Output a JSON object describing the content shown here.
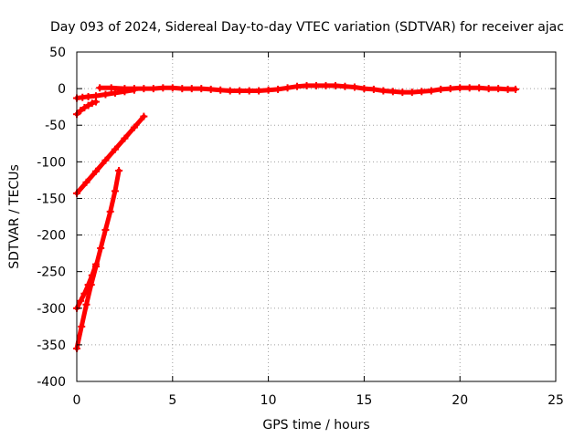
{
  "chart_data": {
    "type": "scatter",
    "title": "Day 093 of 2024, Sidereal Day-to-day VTEC variation (SDTVAR) for receiver ajac",
    "xlabel": "GPS time / hours",
    "ylabel": "SDTVAR / TECUs",
    "xlim": [
      0,
      25
    ],
    "ylim": [
      -400,
      50
    ],
    "xticks": [
      "0",
      "5",
      "10",
      "15",
      "20",
      "25"
    ],
    "yticks": [
      "50",
      "0",
      "-50",
      "-100",
      "-150",
      "-200",
      "-250",
      "-300",
      "-350",
      "-400"
    ],
    "grid": true,
    "series_color": "#ff0000",
    "series": [
      {
        "x": [
          1.2,
          1.8,
          2.5,
          3.0,
          3.5,
          4.0,
          4.5,
          5.0,
          5.5,
          6.0,
          6.5,
          7.0,
          7.5,
          8.0,
          8.5,
          9.0,
          9.5,
          10.0,
          10.5,
          11.0,
          11.5,
          12.0,
          12.5,
          13.0,
          13.5,
          14.0,
          14.5,
          15.0,
          15.5,
          16.0,
          16.5,
          17.0,
          17.5,
          18.0,
          18.5,
          19.0,
          19.5,
          20.0,
          20.5,
          21.0,
          21.5,
          22.0,
          22.5,
          22.9
        ],
        "y": [
          1,
          1,
          0,
          0,
          0,
          0,
          1,
          1,
          0,
          0,
          0,
          -1,
          -2,
          -3,
          -3,
          -3,
          -3,
          -2,
          -1,
          1,
          3,
          4,
          4,
          4,
          4,
          3,
          2,
          0,
          -1,
          -3,
          -4,
          -5,
          -5,
          -4,
          -3,
          -1,
          0,
          1,
          1,
          1,
          0,
          0,
          -1,
          -1
        ]
      },
      {
        "x": [
          0.0,
          0.3,
          0.6,
          1.0,
          1.5,
          2.0,
          2.5,
          3.0
        ],
        "y": [
          -13,
          -12,
          -11,
          -10,
          -8,
          -6,
          -4,
          -2
        ]
      },
      {
        "x": [
          0.0,
          0.2,
          0.4,
          0.6,
          0.8,
          1.0
        ],
        "y": [
          -35,
          -30,
          -26,
          -23,
          -20,
          -18
        ]
      },
      {
        "x": [
          0.0,
          0.5,
          1.0,
          1.5,
          2.0,
          2.5,
          3.0,
          3.5
        ],
        "y": [
          -143,
          -128,
          -113,
          -98,
          -83,
          -68,
          -53,
          -38
        ]
      },
      {
        "x": [
          0.0,
          0.2,
          0.4,
          0.6,
          0.8,
          1.0
        ],
        "y": [
          -300,
          -290,
          -280,
          -268,
          -255,
          -240
        ]
      },
      {
        "x": [
          0.0,
          0.25,
          0.5,
          0.75,
          1.0,
          1.25,
          1.5,
          1.75,
          2.0,
          2.2
        ],
        "y": [
          -355,
          -325,
          -295,
          -268,
          -243,
          -218,
          -193,
          -168,
          -140,
          -112
        ]
      }
    ]
  }
}
